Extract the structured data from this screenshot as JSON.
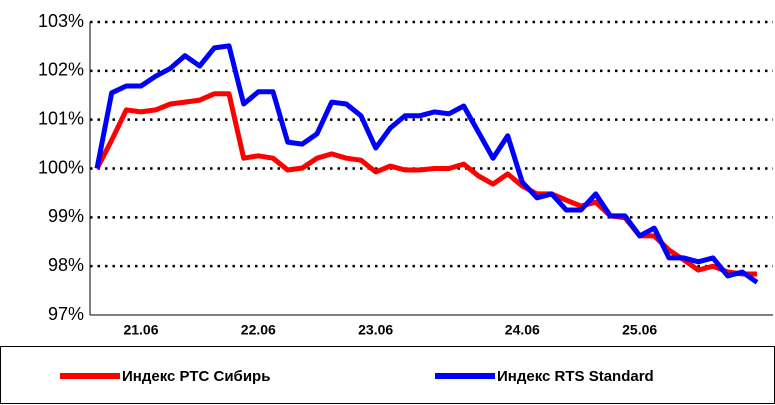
{
  "chart_data": {
    "type": "line",
    "categories": [
      null,
      null,
      null,
      "21.06",
      null,
      null,
      null,
      null,
      null,
      null,
      null,
      "22.06",
      null,
      null,
      null,
      null,
      null,
      null,
      null,
      "23.06",
      null,
      null,
      null,
      null,
      null,
      null,
      null,
      null,
      null,
      "24.06",
      null,
      null,
      null,
      null,
      null,
      null,
      null,
      "25.06",
      null,
      null,
      null,
      null,
      null,
      null,
      null,
      null
    ],
    "series": [
      {
        "name": "Индекс РТС Сибирь",
        "color": "#ff0000",
        "values": [
          100.0,
          100.58,
          101.2,
          101.16,
          101.2,
          101.32,
          101.36,
          101.4,
          101.53,
          101.53,
          100.21,
          100.26,
          100.21,
          99.97,
          100.01,
          100.21,
          100.3,
          100.21,
          100.17,
          99.93,
          100.05,
          99.97,
          99.97,
          100.0,
          100.0,
          100.09,
          99.85,
          99.68,
          99.89,
          99.64,
          99.48,
          99.48,
          99.35,
          99.23,
          99.31,
          99.03,
          98.99,
          98.62,
          98.62,
          98.33,
          98.13,
          97.92,
          98.0,
          97.88,
          97.84,
          97.84
        ]
      },
      {
        "name": "Индекс RTS Standard",
        "color": "#0000ff",
        "values": [
          100.0,
          101.55,
          101.69,
          101.69,
          101.89,
          102.05,
          102.31,
          102.1,
          102.47,
          102.51,
          101.32,
          101.57,
          101.57,
          100.54,
          100.5,
          100.71,
          101.36,
          101.32,
          101.08,
          100.42,
          100.83,
          101.08,
          101.08,
          101.16,
          101.12,
          101.28,
          100.75,
          100.21,
          100.67,
          99.72,
          99.4,
          99.48,
          99.15,
          99.15,
          99.48,
          99.03,
          99.03,
          98.62,
          98.78,
          98.17,
          98.17,
          98.09,
          98.17,
          97.8,
          97.88,
          97.67
        ]
      }
    ],
    "ylim": [
      97,
      103
    ],
    "yticks": [
      {
        "value": 97,
        "label": "97%"
      },
      {
        "value": 98,
        "label": "98%"
      },
      {
        "value": 99,
        "label": "99%"
      },
      {
        "value": 100,
        "label": "100%"
      },
      {
        "value": 101,
        "label": "101%"
      },
      {
        "value": 102,
        "label": "102%"
      },
      {
        "value": 103,
        "label": "103%"
      }
    ],
    "grid": true,
    "legend": "bottom"
  }
}
